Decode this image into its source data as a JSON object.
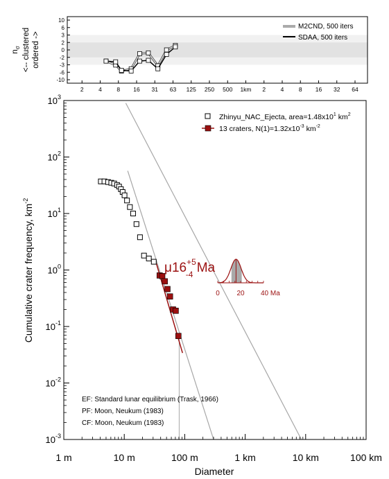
{
  "chart_data": [
    {
      "panel": "randomness-analysis",
      "type": "line",
      "ylabel_lines": [
        "ordered ->",
        "<-- clustered",
        "n"
      ],
      "ylabel_subscript": "σ",
      "yticks": [
        "10",
        "6",
        "3",
        "2",
        "0",
        "-2",
        "-3",
        "-6",
        "-10"
      ],
      "xticks": [
        "2",
        "4",
        "8",
        "16",
        "31",
        "63",
        "125",
        "250",
        "500",
        "1km",
        "2",
        "4",
        "8",
        "16",
        "32",
        "64"
      ],
      "legend": [
        "M2CND, 500 iters",
        "SDAA, 500 iters"
      ],
      "x": [
        5,
        7.2,
        9,
        13,
        18,
        25,
        36,
        50,
        70
      ],
      "series": [
        {
          "name": "M2CND, 500 iters",
          "values": [
            -2.5,
            -3.1,
            -5.5,
            -4.6,
            -1.0,
            -0.8,
            -3.4,
            0.0,
            1.2
          ]
        },
        {
          "name": "SDAA, 500 iters",
          "values": [
            -2.5,
            -2.6,
            -5.2,
            -5.5,
            -2.5,
            -2.4,
            -4.6,
            -1.2,
            0.8
          ]
        }
      ]
    },
    {
      "panel": "crater-size-frequency",
      "type": "scatter",
      "xlabel": "Diameter",
      "ylabel": "Cumulative crater frequency, km",
      "ylabel_sup": "-2",
      "xscale": "log",
      "yscale": "log",
      "xlim": [
        0.001,
        100
      ],
      "ylim": [
        0.001,
        1000
      ],
      "xticks": [
        "1 m",
        "10 m",
        "100 m",
        "1 km",
        "10 km",
        "100 km"
      ],
      "ytick_exps": [
        "3",
        "2",
        "1",
        "0",
        "-1",
        "-2",
        "-3"
      ],
      "legend": [
        {
          "label": "Zhinyu_NAC_Ejecta, area=1.48x10",
          "sup": "1",
          "tail": " km",
          "sup2": "2"
        },
        {
          "label": "13 craters, N(1)=1.32x10",
          "sup": "-3",
          "tail": " km",
          "sup2": "-2"
        }
      ],
      "all_craters": {
        "name": "Zhinyu_NAC_Ejecta",
        "x": [
          0.0041,
          0.0047,
          0.0054,
          0.0061,
          0.0068,
          0.0076,
          0.0082,
          0.0088,
          0.0094,
          0.0101,
          0.0111,
          0.0124,
          0.014,
          0.0159,
          0.0182,
          0.0212,
          0.0255,
          0.0308
        ],
        "y": [
          37,
          37,
          36,
          35,
          34,
          32,
          30,
          27,
          24,
          21,
          17,
          13,
          10,
          6.5,
          3.8,
          1.8,
          1.6,
          1.4
        ]
      },
      "fitted_craters": {
        "name": "13 craters",
        "x": [
          0.0385,
          0.0425,
          0.0468,
          0.0518,
          0.0571,
          0.064,
          0.071,
          0.0786
        ],
        "y": [
          0.8,
          0.78,
          0.63,
          0.46,
          0.34,
          0.2,
          0.19,
          0.068
        ]
      },
      "fit_line": {
        "x": [
          0.034,
          0.092
        ],
        "y": [
          1.3,
          0.034
        ]
      },
      "isochrons": [
        {
          "label": "EF",
          "x": [
            0.0106,
            8.5
          ],
          "y": [
            900,
            0.001
          ]
        },
        {
          "label": "PF",
          "x": [
            0.0114,
            0.3
          ],
          "y": [
            57,
            0.001
          ]
        }
      ],
      "rollover_line_x": 0.081,
      "age": {
        "prefix": "μ",
        "value": "16",
        "plus": "+5",
        "minus": "-4",
        "unit": " Ma"
      },
      "age_pdf": {
        "xticks": [
          "0",
          "20",
          "40 Ma"
        ],
        "peak": 16,
        "sigma": 4.5
      },
      "notes": [
        "EF: Standard lunar equilibrium (Trask, 1966)",
        "PF: Moon, Neukum (1983)",
        "CF: Moon, Neukum (1983)"
      ],
      "colors": {
        "fit": "#9b1010",
        "lines": "#a6a6a6",
        "band_outer": "#f1f1f1",
        "band_inner": "#e2e2e2"
      }
    }
  ]
}
